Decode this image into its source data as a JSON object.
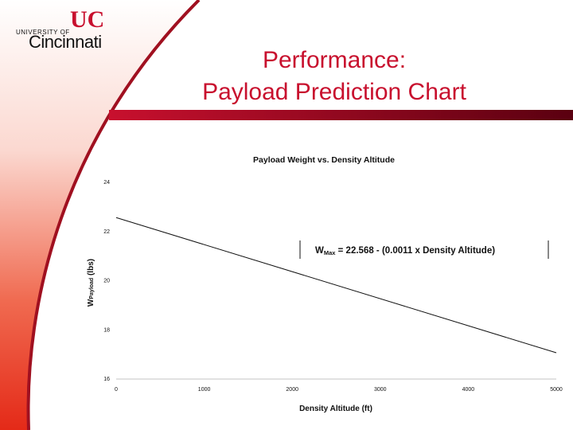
{
  "header": {
    "logo": {
      "university": "UNIVERSITY OF",
      "name": "Cincinnati"
    },
    "title_line1": "Performance:",
    "title_line2": "Payload Prediction Chart"
  },
  "colors": {
    "accent": "#c8102e",
    "gradient_dark": "#e83020"
  },
  "chart_data": {
    "type": "line",
    "title": "Payload Weight vs. Density Altitude",
    "xlabel": "Density Altitude (ft)",
    "ylabel": {
      "main": "W",
      "sub": "Payload",
      "rest": " (lbs)"
    },
    "xlim": [
      0,
      5000
    ],
    "ylim": [
      16,
      24
    ],
    "xticks": [
      "0",
      "1000",
      "2000",
      "3000",
      "4000",
      "5000"
    ],
    "yticks": [
      "16",
      "18",
      "20",
      "22",
      "24"
    ],
    "grid": false,
    "series": [
      {
        "x": [
          0,
          5000
        ],
        "y": [
          22.568,
          17.068
        ]
      }
    ],
    "annotation": {
      "w": "W",
      "sub": "Max",
      "rest": " = 22.568 - (0.0011 x Density Altitude)"
    }
  }
}
